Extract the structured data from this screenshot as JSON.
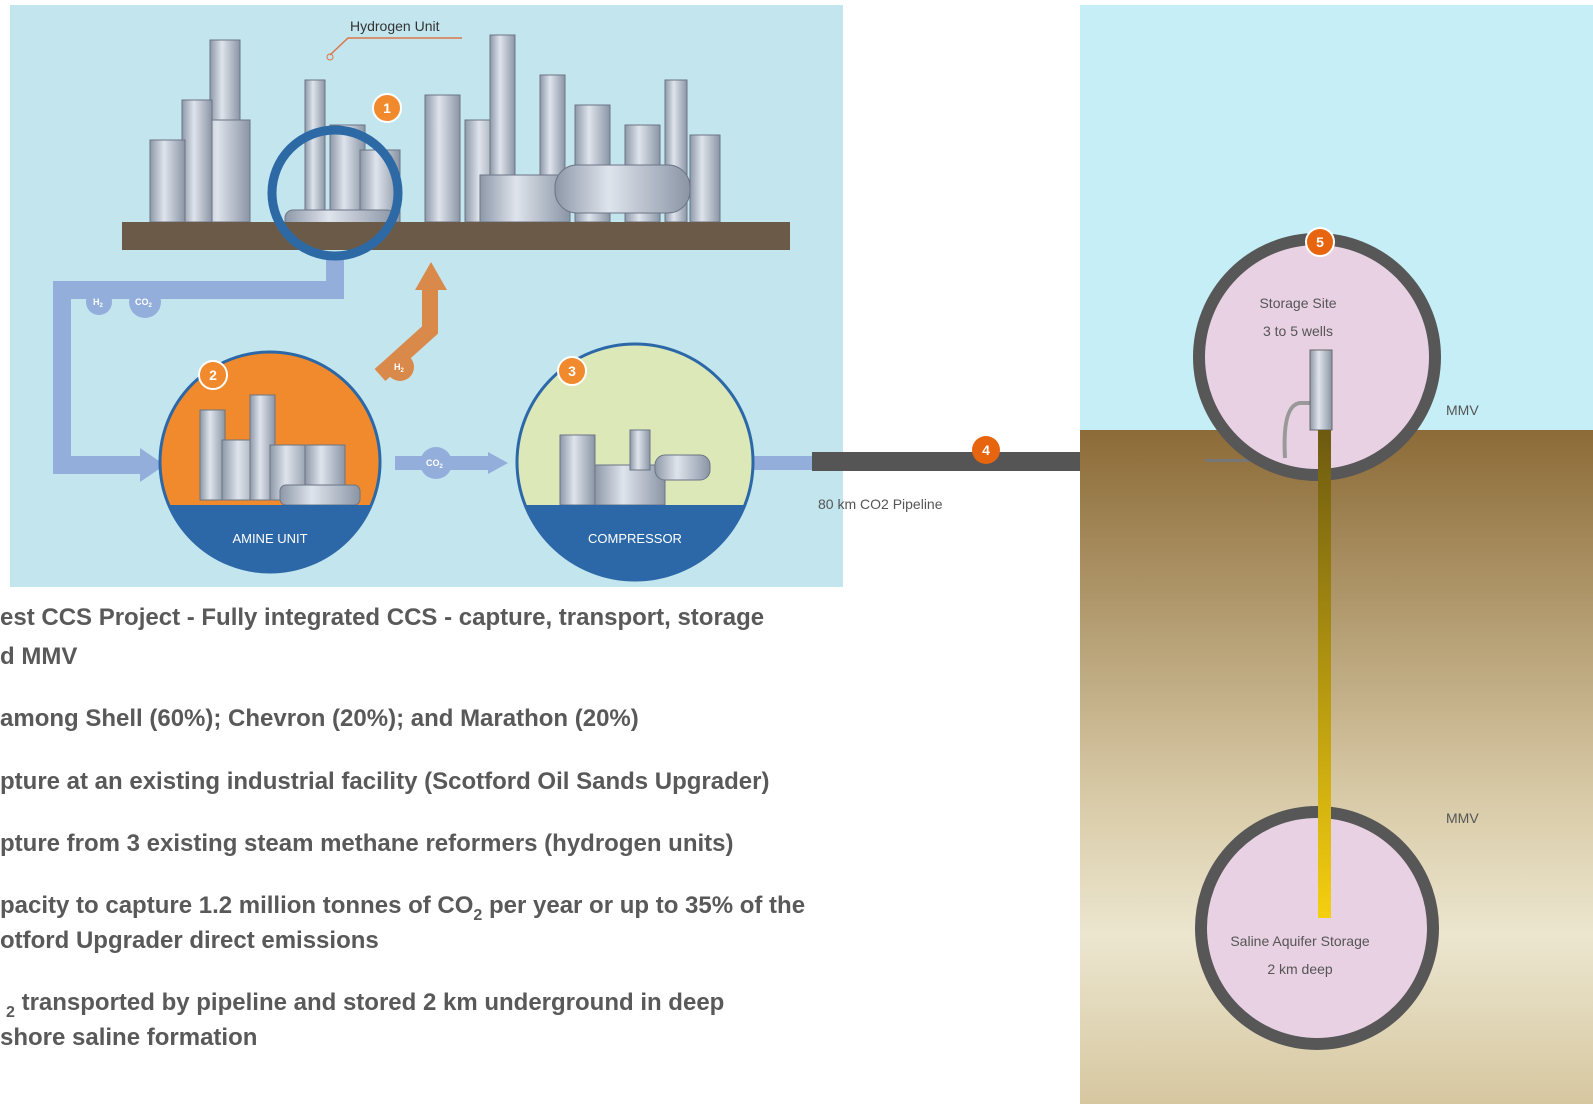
{
  "illustration": {
    "hydrogen_unit_label": "Hydrogen Unit",
    "amine_unit_label": "AMINE UNIT",
    "compressor_label": "COMPRESSOR",
    "markers": [
      "1",
      "2",
      "3"
    ],
    "pipe_labels": [
      {
        "main": "H",
        "sub": "2"
      },
      {
        "main": "CO",
        "sub": "2"
      },
      {
        "main": "H",
        "sub": "2"
      },
      {
        "main": "CO",
        "sub": "2"
      }
    ]
  },
  "pipeline": {
    "marker": "4",
    "label": "80  km  CO2  Pipeline"
  },
  "storage": {
    "marker": "5",
    "site_title": "Storage  Site",
    "site_wells": "3  to  5  wells",
    "mmv_upper": "MMV",
    "mmv_lower": "MMV",
    "aquifer_title": "Saline  Aquifer  Storage",
    "aquifer_depth": "2  km  deep"
  },
  "bullets": [
    {
      "lines": [
        [
          "est CCS Project - Fully integrated CCS - capture, transport, storage"
        ],
        [
          "d MMV"
        ]
      ]
    },
    {
      "lines": [
        [
          "among Shell (60%); Chevron (20%); and Marathon (20%)"
        ]
      ]
    },
    {
      "lines": [
        [
          "pture at an existing industrial facility (Scotford Oil Sands Upgrader)"
        ]
      ]
    },
    {
      "lines": [
        [
          "pture from 3 existing steam methane reformers (hydrogen units)"
        ]
      ]
    },
    {
      "lines": [
        [
          "pacity to capture 1.2 million tonnes of CO",
          "2",
          " per year or up to 35% of the"
        ],
        [
          "otford Upgrader direct emissions"
        ]
      ]
    },
    {
      "lines": [
        [
          "",
          "2",
          " transported by pipeline and stored 2 km underground in deep"
        ],
        [
          "shore saline formation"
        ]
      ]
    }
  ]
}
